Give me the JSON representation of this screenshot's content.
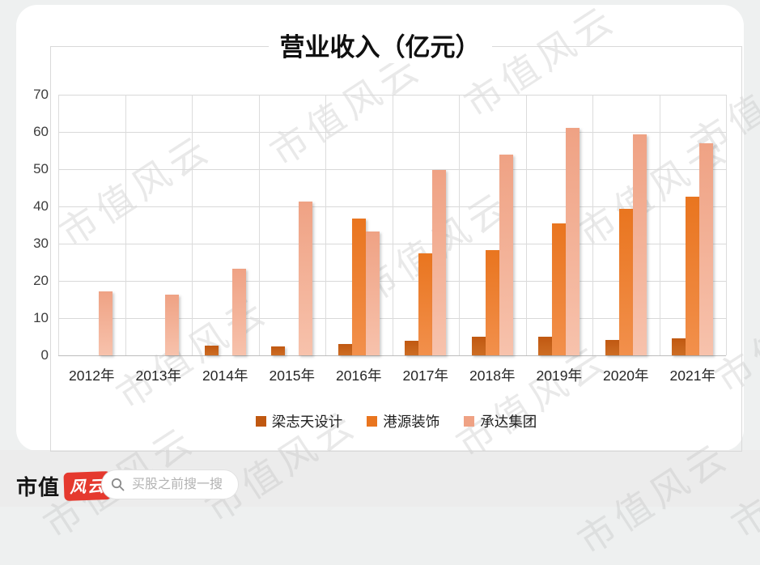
{
  "watermark_text": "市值风云",
  "chart_data": {
    "type": "bar",
    "title": "营业收入（亿元）",
    "categories": [
      "2012年",
      "2013年",
      "2014年",
      "2015年",
      "2016年",
      "2017年",
      "2018年",
      "2019年",
      "2020年",
      "2021年"
    ],
    "series": [
      {
        "name": "梁志天设计",
        "color": "#c05811",
        "color_light": "#cd6d24",
        "values": [
          null,
          null,
          2.7,
          2.3,
          3.1,
          4.0,
          4.9,
          5.1,
          4.2,
          4.5
        ]
      },
      {
        "name": "港源装饰",
        "color": "#e9751f",
        "color_light": "#f2904c",
        "values": [
          null,
          null,
          null,
          null,
          36.8,
          27.4,
          28.3,
          35.5,
          39.4,
          42.6
        ]
      },
      {
        "name": "承达集团",
        "color": "#efa284",
        "color_light": "#f7c2ac",
        "values": [
          17.2,
          16.2,
          23.2,
          41.3,
          33.2,
          49.8,
          54.0,
          61.0,
          59.4,
          56.9
        ]
      }
    ],
    "ylim": [
      0,
      70
    ],
    "ytick_step": 10,
    "grid": true,
    "legend_position": "bottom"
  },
  "footer": {
    "brand_prefix": "市值",
    "brand_badge": "风云",
    "search_placeholder": "买股之前搜一搜"
  },
  "colors": {
    "page_background": "#eef0f0",
    "card_background": "#ffffff",
    "footer_background": "#ececec",
    "frame_border": "#d9d9d9",
    "badge_red": "#e5392e"
  }
}
